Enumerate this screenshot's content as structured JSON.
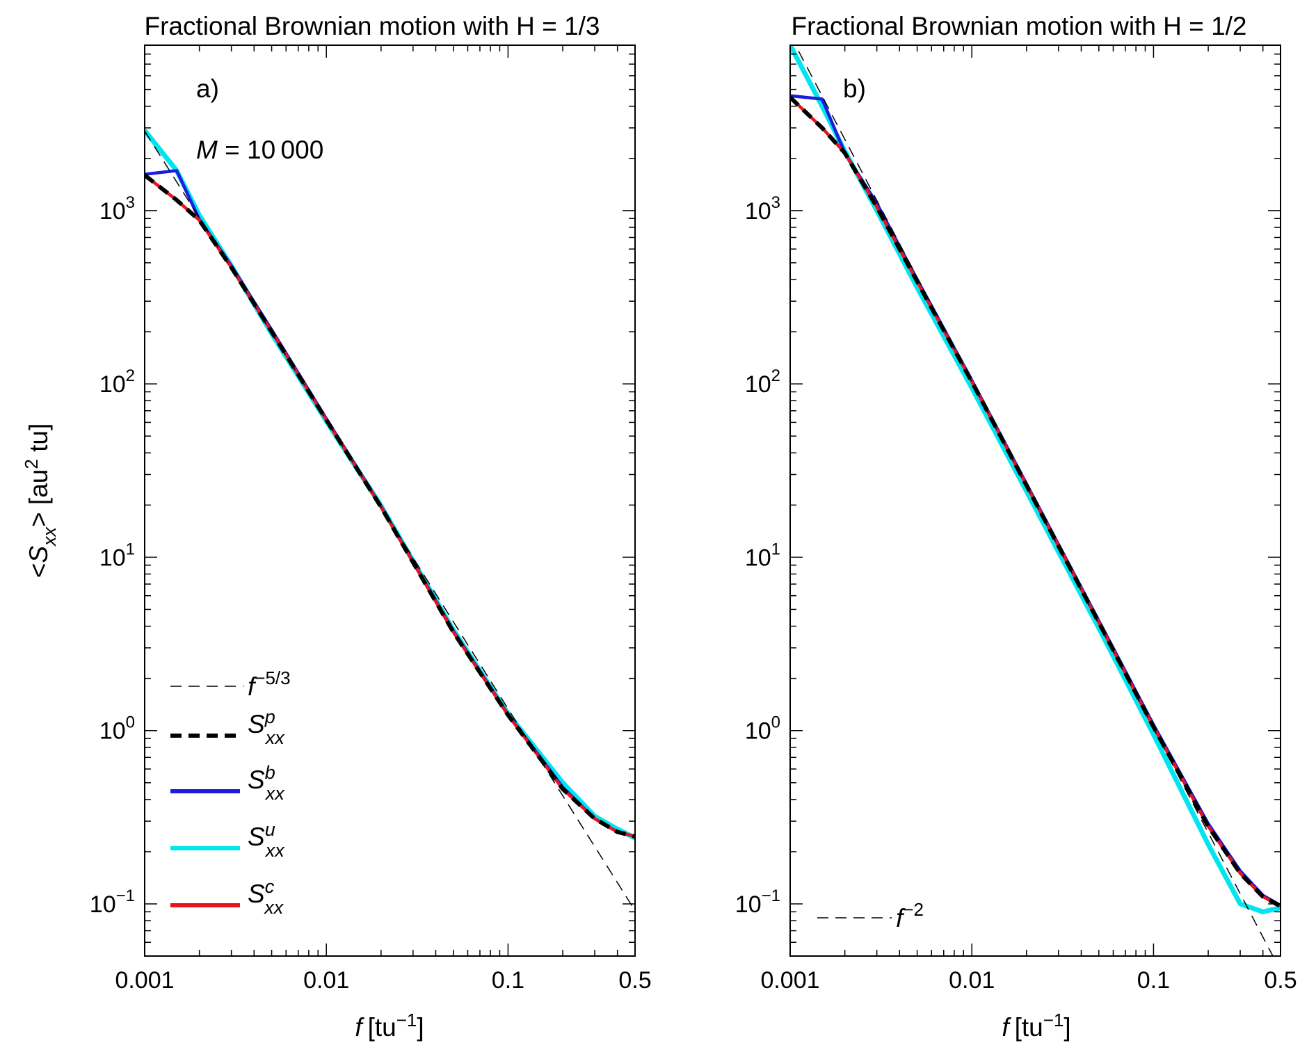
{
  "chart_data": [
    {
      "type": "line",
      "panel_label": "a)",
      "title": "Fractional Brownian motion with H = 1/3",
      "xlabel": "f [tu⁻¹]",
      "xlabel_var": "f",
      "xlabel_unit": "[tu",
      "xlabel_exp": "−1",
      "xlabel_close": "]",
      "ylabel_open": "<",
      "ylabel_var": "S",
      "ylabel_sub": "xx",
      "ylabel_rest": "> [au",
      "ylabel_exp": "2",
      "ylabel_unit": " tu]",
      "xscale": "log",
      "yscale": "log",
      "xlim": [
        0.001,
        0.5
      ],
      "ylim": [
        0.05,
        9000
      ],
      "xticks": [
        0.001,
        0.01,
        0.1,
        0.5
      ],
      "xtick_labels": [
        "0.001",
        "0.01",
        "0.1",
        "0.5"
      ],
      "yticks": [
        0.1,
        1,
        10,
        100,
        1000
      ],
      "ytick_bases": [
        "10",
        "10",
        "10",
        "10",
        "10"
      ],
      "ytick_exps": [
        "−1",
        "0",
        "1",
        "2",
        "3"
      ],
      "annotation": {
        "var": "M",
        "text": " = 10 000"
      },
      "reference_slope": -1.6667,
      "reference_label": "f",
      "reference_label_exp": "−5/3",
      "series": [
        {
          "name": "S_xx^p",
          "sup": "p",
          "color": "#000000",
          "dash": "dashed",
          "x": [
            0.001,
            0.0015,
            0.002,
            0.003,
            0.005,
            0.01,
            0.02,
            0.05,
            0.1,
            0.2,
            0.3,
            0.4,
            0.5
          ],
          "y": [
            1600,
            1150,
            880,
            470,
            200,
            62,
            19.5,
            3.7,
            1.23,
            0.46,
            0.31,
            0.26,
            0.245
          ]
        },
        {
          "name": "S_xx^b",
          "sup": "b",
          "color": "#1c1cdf",
          "dash": "solid",
          "x": [
            0.001,
            0.0015,
            0.002,
            0.003,
            0.005,
            0.01,
            0.02,
            0.05,
            0.1,
            0.2,
            0.3,
            0.4,
            0.5
          ],
          "y": [
            1620,
            1700,
            890,
            480,
            205,
            63,
            19.7,
            3.75,
            1.24,
            0.47,
            0.31,
            0.26,
            0.245
          ]
        },
        {
          "name": "S_xx^u",
          "sup": "u",
          "color": "#00e6f0",
          "dash": "solid",
          "x": [
            0.001,
            0.0015,
            0.002,
            0.003,
            0.005,
            0.01,
            0.02,
            0.05,
            0.1,
            0.2,
            0.3,
            0.4,
            0.5
          ],
          "y": [
            2900,
            1700,
            940,
            480,
            195,
            61,
            19.8,
            3.8,
            1.25,
            0.5,
            0.32,
            0.27,
            0.24
          ]
        },
        {
          "name": "S_xx^c",
          "sup": "c",
          "color": "#e8131f",
          "dash": "solid",
          "x": [
            0.001,
            0.0015,
            0.002,
            0.003,
            0.005,
            0.01,
            0.02,
            0.05,
            0.1,
            0.2,
            0.3,
            0.4,
            0.5
          ],
          "y": [
            1600,
            1150,
            880,
            470,
            200,
            62,
            19.5,
            3.7,
            1.23,
            0.46,
            0.31,
            0.26,
            0.245
          ]
        }
      ]
    },
    {
      "type": "line",
      "panel_label": "b)",
      "title": "Fractional Brownian motion with H = 1/2",
      "xlabel": "f [tu⁻¹]",
      "xlabel_var": "f",
      "xlabel_unit": "[tu",
      "xlabel_exp": "−1",
      "xlabel_close": "]",
      "xscale": "log",
      "yscale": "log",
      "xlim": [
        0.001,
        0.5
      ],
      "ylim": [
        0.05,
        9000
      ],
      "xticks": [
        0.001,
        0.01,
        0.1,
        0.5
      ],
      "xtick_labels": [
        "0.001",
        "0.01",
        "0.1",
        "0.5"
      ],
      "yticks": [
        0.1,
        1,
        10,
        100,
        1000
      ],
      "ytick_bases": [
        "10",
        "10",
        "10",
        "10",
        "10"
      ],
      "ytick_exps": [
        "−1",
        "0",
        "1",
        "2",
        "3"
      ],
      "reference_slope": -2,
      "reference_label": "f",
      "reference_label_exp": "−2",
      "series": [
        {
          "name": "S_xx^p",
          "color": "#000000",
          "dash": "dashed",
          "x": [
            0.001,
            0.0015,
            0.002,
            0.003,
            0.005,
            0.01,
            0.02,
            0.05,
            0.1,
            0.2,
            0.3,
            0.4,
            0.5
          ],
          "y": [
            4500,
            3000,
            2150,
            1050,
            390,
            103,
            26,
            4.2,
            1.05,
            0.28,
            0.15,
            0.11,
            0.097
          ]
        },
        {
          "name": "S_xx^b",
          "color": "#1c1cdf",
          "dash": "solid",
          "x": [
            0.001,
            0.0015,
            0.002,
            0.003,
            0.005,
            0.01,
            0.02,
            0.05,
            0.1,
            0.2,
            0.3,
            0.4,
            0.5
          ],
          "y": [
            4600,
            4400,
            2150,
            1100,
            400,
            105,
            26.5,
            4.3,
            1.08,
            0.29,
            0.155,
            0.112,
            0.098
          ]
        },
        {
          "name": "S_xx^u",
          "color": "#00e6f0",
          "dash": "solid",
          "x": [
            0.001,
            0.0015,
            0.002,
            0.003,
            0.005,
            0.01,
            0.02,
            0.05,
            0.1,
            0.2,
            0.3,
            0.4,
            0.5
          ],
          "y": [
            9000,
            4000,
            2200,
            1000,
            360,
            95,
            24,
            3.9,
            0.95,
            0.22,
            0.1,
            0.09,
            0.095
          ]
        },
        {
          "name": "S_xx^c",
          "color": "#e8131f",
          "dash": "solid",
          "x": [
            0.001,
            0.0015,
            0.002,
            0.003,
            0.005,
            0.01,
            0.02,
            0.05,
            0.1,
            0.2,
            0.3,
            0.4,
            0.5
          ],
          "y": [
            4500,
            3000,
            2150,
            1050,
            390,
            103,
            26,
            4.2,
            1.05,
            0.28,
            0.15,
            0.11,
            0.097
          ]
        }
      ]
    }
  ]
}
